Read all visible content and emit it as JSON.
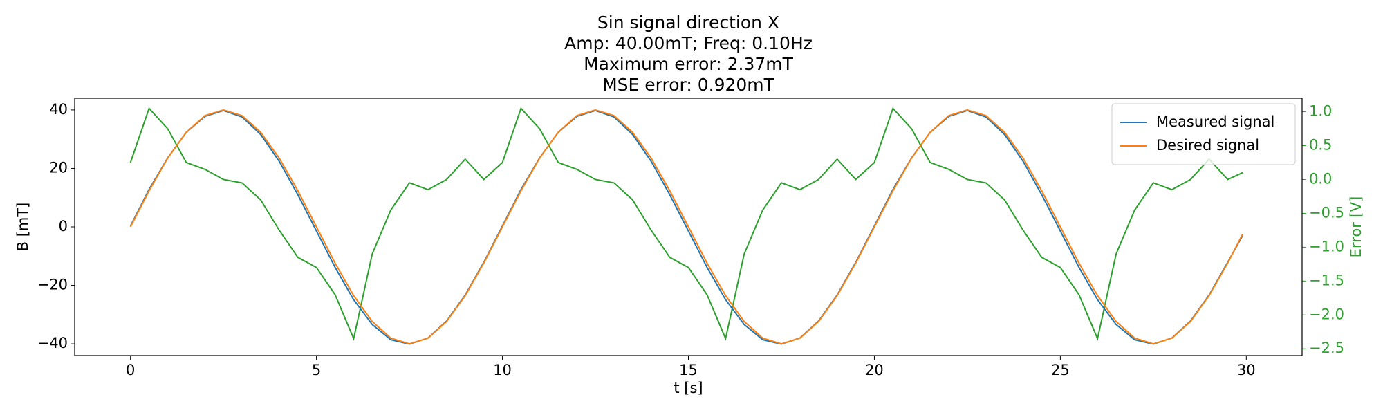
{
  "chart_data": {
    "type": "line",
    "title": [
      "Sin signal direction X",
      "Amp: 40.00mT; Freq: 0.10Hz",
      "Maximum error: 2.37mT",
      "MSE error: 0.920mT"
    ],
    "xlabel": "t [s]",
    "ylabel": "B [mT]",
    "y2label": "Error [V]",
    "y2color": "#2ca02c",
    "x": [
      0,
      0.5,
      1,
      1.5,
      2,
      2.5,
      3,
      3.5,
      4,
      4.5,
      5,
      5.5,
      6,
      6.5,
      7,
      7.5,
      8,
      8.5,
      9,
      9.5,
      10,
      10.5,
      11,
      11.5,
      12,
      12.5,
      13,
      13.5,
      14,
      14.5,
      15,
      15.5,
      16,
      16.5,
      17,
      17.5,
      18,
      18.5,
      19,
      19.5,
      20,
      20.5,
      21,
      21.5,
      22,
      22.5,
      23,
      23.5,
      24,
      24.5,
      25,
      25.5,
      26,
      26.5,
      27,
      27.5,
      28,
      28.5,
      29,
      29.5,
      29.9
    ],
    "series": [
      {
        "name": "Measured signal",
        "color": "#1f77b4",
        "values": [
          0.3,
          12.8,
          23.6,
          32.3,
          37.8,
          39.8,
          37.6,
          31.6,
          22.4,
          11.0,
          -1.4,
          -13.8,
          -24.9,
          -33.4,
          -38.6,
          -40.1,
          -38.0,
          -32.2,
          -23.3,
          -12.1,
          0.3,
          12.8,
          23.6,
          32.3,
          37.8,
          39.8,
          37.6,
          31.6,
          22.4,
          11.0,
          -1.4,
          -13.8,
          -24.9,
          -33.4,
          -38.6,
          -40.1,
          -38.0,
          -32.2,
          -23.3,
          -12.1,
          0.3,
          12.8,
          23.6,
          32.3,
          37.8,
          39.8,
          37.6,
          31.6,
          22.4,
          11.0,
          -1.4,
          -13.8,
          -24.9,
          -33.4,
          -38.6,
          -40.1,
          -38.0,
          -32.2,
          -23.3,
          -12.1,
          -3.0
        ]
      },
      {
        "name": "Desired signal",
        "color": "#ff7f0e",
        "values": [
          0,
          12.36,
          23.51,
          32.36,
          38.04,
          40,
          38.04,
          32.36,
          23.51,
          12.36,
          0,
          -12.36,
          -23.51,
          -32.36,
          -38.04,
          -40,
          -38.04,
          -32.36,
          -23.51,
          -12.36,
          0,
          12.36,
          23.51,
          32.36,
          38.04,
          40,
          38.04,
          32.36,
          23.51,
          12.36,
          0,
          -12.36,
          -23.51,
          -32.36,
          -38.04,
          -40,
          -38.04,
          -32.36,
          -23.51,
          -12.36,
          0,
          12.36,
          23.51,
          32.36,
          38.04,
          40,
          38.04,
          32.36,
          23.51,
          12.36,
          0,
          -12.36,
          -23.51,
          -32.36,
          -38.04,
          -40,
          -38.04,
          -32.36,
          -23.51,
          -12.36,
          -2.51
        ]
      },
      {
        "color": "#2ca02c",
        "axis": "y2",
        "values": [
          0.25,
          1.05,
          0.75,
          0.25,
          0.15,
          0.0,
          -0.05,
          -0.3,
          -0.75,
          -1.15,
          -1.3,
          -1.7,
          -2.35,
          -1.1,
          -0.45,
          -0.05,
          -0.15,
          0.0,
          0.3,
          0.0,
          0.25,
          1.05,
          0.75,
          0.25,
          0.15,
          0.0,
          -0.05,
          -0.3,
          -0.75,
          -1.15,
          -1.3,
          -1.7,
          -2.35,
          -1.1,
          -0.45,
          -0.05,
          -0.15,
          0.0,
          0.3,
          0.0,
          0.25,
          1.05,
          0.75,
          0.25,
          0.15,
          0.0,
          -0.05,
          -0.3,
          -0.75,
          -1.15,
          -1.3,
          -1.7,
          -2.35,
          -1.1,
          -0.45,
          -0.05,
          -0.15,
          0.0,
          0.3,
          0.0,
          0.1
        ]
      }
    ],
    "xlim": [
      -1.5,
      31.5
    ],
    "xticks": [
      0,
      5,
      10,
      15,
      20,
      25,
      30
    ],
    "ylim": [
      -44,
      44
    ],
    "yticks": [
      {
        "value": -40,
        "label": "−40"
      },
      {
        "value": -20,
        "label": "−20"
      },
      0,
      20,
      40
    ],
    "y2lim": [
      -2.6,
      1.2
    ],
    "y2ticks": [
      {
        "value": -2.5,
        "label": "−2.5"
      },
      {
        "value": -2.0,
        "label": "−2.0"
      },
      {
        "value": -1.5,
        "label": "−1.5"
      },
      {
        "value": -1.0,
        "label": "−1.0"
      },
      {
        "value": -0.5,
        "label": "−0.5"
      },
      {
        "value": 0,
        "label": "0.0"
      },
      0.5,
      {
        "value": 1.0,
        "label": "1.0"
      }
    ],
    "legend": "upper right",
    "grid": false
  }
}
